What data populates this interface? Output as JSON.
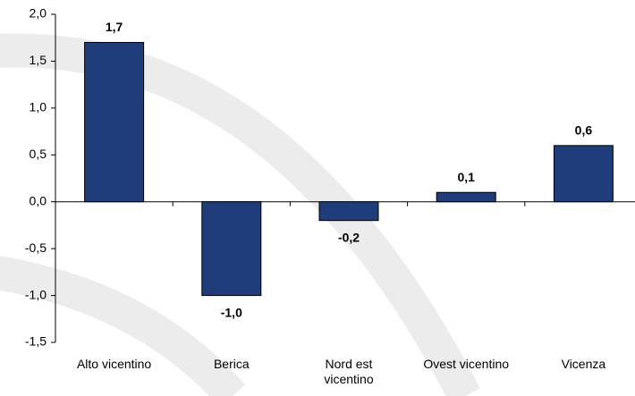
{
  "chart_data": {
    "type": "bar",
    "categories": [
      "Alto vicentino",
      "Berica",
      "Nord est\nvicentino",
      "Ovest vicentino",
      "Vicenza"
    ],
    "values": [
      1.7,
      -1.0,
      -0.2,
      0.1,
      0.6
    ],
    "value_labels": [
      "1,7",
      "-1,0",
      "-0,2",
      "0,1",
      "0,6"
    ],
    "color": "#1f3d7a",
    "ylim": [
      -1.5,
      2.0
    ],
    "yticks": [
      {
        "value": -1.5,
        "label": "-1,5"
      },
      {
        "value": -1.0,
        "label": "-1,0"
      },
      {
        "value": -0.5,
        "label": "-0,5"
      },
      {
        "value": 0.0,
        "label": "0,0"
      },
      {
        "value": 0.5,
        "label": "0,5"
      },
      {
        "value": 1.0,
        "label": "1,0"
      },
      {
        "value": 1.5,
        "label": "1,5"
      },
      {
        "value": 2.0,
        "label": "2,0"
      }
    ],
    "grid": false
  }
}
